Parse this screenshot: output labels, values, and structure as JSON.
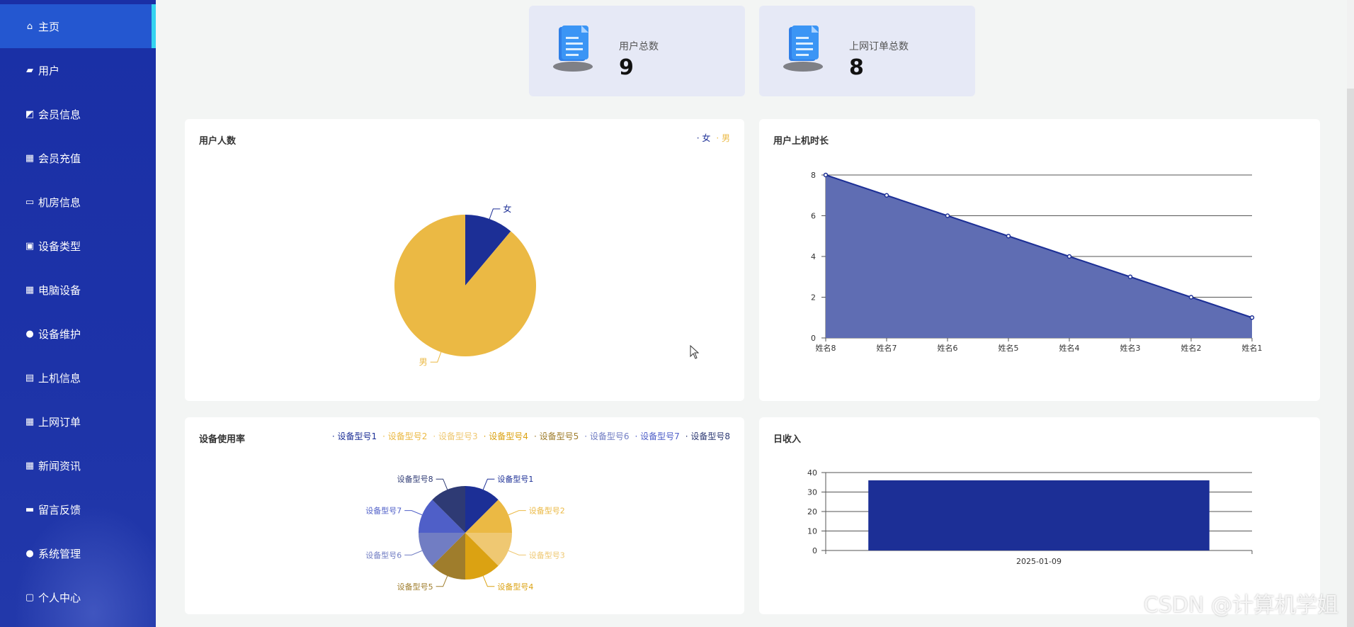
{
  "sidebar": {
    "items": [
      {
        "label": "主页",
        "icon": "home-icon",
        "active": true
      },
      {
        "label": "用户",
        "icon": "ticket-icon"
      },
      {
        "label": "会员信息",
        "icon": "chart-icon"
      },
      {
        "label": "会员充值",
        "icon": "grid-icon"
      },
      {
        "label": "机房信息",
        "icon": "chair-icon"
      },
      {
        "label": "设备类型",
        "icon": "briefcase-icon"
      },
      {
        "label": "电脑设备",
        "icon": "grid-icon"
      },
      {
        "label": "设备维护",
        "icon": "person-icon"
      },
      {
        "label": "上机信息",
        "icon": "clipboard-icon"
      },
      {
        "label": "上网订单",
        "icon": "grid-icon"
      },
      {
        "label": "新闻资讯",
        "icon": "grid-icon"
      },
      {
        "label": "留言反馈",
        "icon": "monitor-icon"
      },
      {
        "label": "系统管理",
        "icon": "person-icon"
      },
      {
        "label": "个人中心",
        "icon": "calendar-icon"
      }
    ]
  },
  "stats": [
    {
      "label": "用户总数",
      "value": "9",
      "icon": "document-icon"
    },
    {
      "label": "上网订单总数",
      "value": "8",
      "icon": "document-icon"
    }
  ],
  "colors": {
    "navy": "#1c2f96",
    "gold": "#ebb944",
    "sidebar": "#1d33a8",
    "active": "#2457d0",
    "accent": "#34d3f0"
  },
  "panels": {
    "user_count": {
      "title": "用户人数"
    },
    "online_duration": {
      "title": "用户上机时长"
    },
    "device_usage": {
      "title": "设备使用率"
    },
    "daily_income": {
      "title": "日收入"
    }
  },
  "chart_data": [
    {
      "type": "pie",
      "title": "用户人数",
      "labels": [
        "女",
        "男"
      ],
      "values": [
        1,
        8
      ],
      "colors": [
        "#1c2f96",
        "#ebb944"
      ],
      "legend": "top-right"
    },
    {
      "type": "area",
      "title": "用户上机时长",
      "categories": [
        "姓名8",
        "姓名7",
        "姓名6",
        "姓名5",
        "姓名4",
        "姓名3",
        "姓名2",
        "姓名1"
      ],
      "values": [
        8,
        7,
        6,
        5,
        4,
        3,
        2,
        1
      ],
      "ylim": [
        0,
        8
      ],
      "yticks": [
        0,
        2,
        4,
        6,
        8
      ],
      "grid": true,
      "colors": {
        "line": "#1c2f96",
        "fill": "#5f6db3"
      }
    },
    {
      "type": "pie",
      "title": "设备使用率",
      "labels": [
        "设备型号1",
        "设备型号2",
        "设备型号3",
        "设备型号4",
        "设备型号5",
        "设备型号6",
        "设备型号7",
        "设备型号8"
      ],
      "values": [
        1,
        1,
        1,
        1,
        1,
        1,
        1,
        1
      ],
      "colors": [
        "#1c2f96",
        "#ebb944",
        "#efc872",
        "#dba212",
        "#9f7d2c",
        "#717dc3",
        "#4f5fc8",
        "#2e3a74"
      ],
      "legend": "top-right"
    },
    {
      "type": "bar",
      "title": "日收入",
      "categories": [
        "2025-01-09"
      ],
      "values": [
        36
      ],
      "ylim": [
        0,
        40
      ],
      "yticks": [
        0,
        10,
        20,
        30,
        40
      ],
      "grid": true,
      "colors": {
        "bar": "#1c2f96"
      }
    }
  ],
  "watermark": "CSDN @计算机学姐"
}
